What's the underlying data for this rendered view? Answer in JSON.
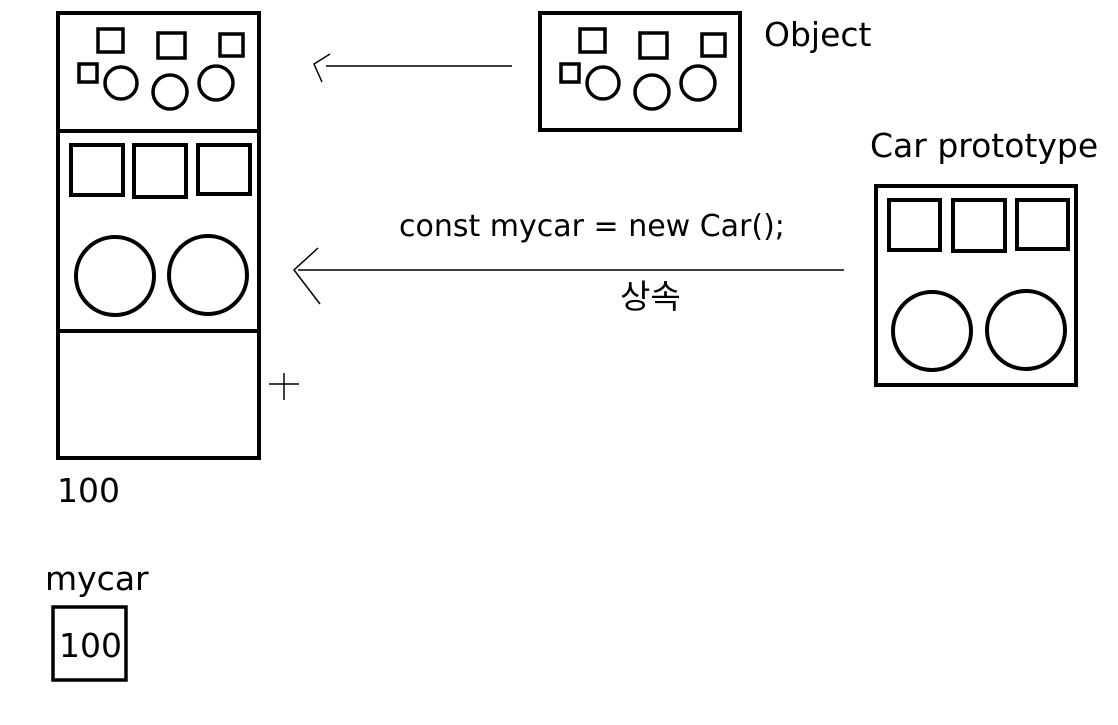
{
  "labels": {
    "object": "Object",
    "car_prototype": "Car prototype",
    "code": "const mycar = new Car();",
    "inherit": "상속",
    "address": "100",
    "var_name": "mycar",
    "var_value": "100"
  },
  "colors": {
    "stroke": "#000000",
    "background": "#ffffff"
  }
}
